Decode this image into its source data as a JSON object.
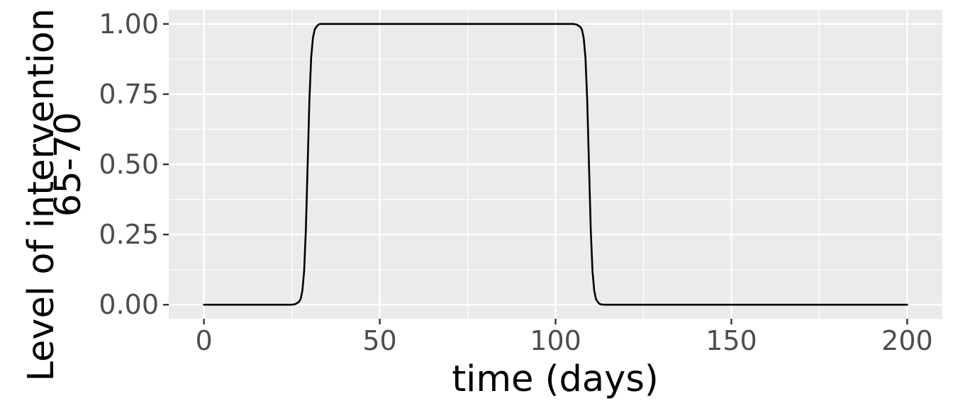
{
  "chart_data": {
    "type": "line",
    "xlabel": "time (days)",
    "ylabel_lines": [
      "Level of intervention for",
      "65-70"
    ],
    "xlim": [
      -10,
      210
    ],
    "ylim": [
      -0.05,
      1.05
    ],
    "x_ticks": [
      0,
      50,
      100,
      150,
      200
    ],
    "x_tick_labels": [
      "0",
      "50",
      "100",
      "150",
      "200"
    ],
    "y_ticks": [
      0,
      0.25,
      0.5,
      0.75,
      1.0
    ],
    "y_tick_labels": [
      "0.00",
      "0.25",
      "0.50",
      "0.75",
      "1.00"
    ],
    "grid": true,
    "series": [
      {
        "color": "#000000",
        "x": [
          0,
          10,
          20,
          25,
          26,
          27,
          27.5,
          28,
          28.5,
          29,
          29.5,
          30,
          30.5,
          31,
          31.5,
          32,
          32.5,
          33,
          34,
          35,
          50,
          75,
          100,
          105,
          106,
          107,
          107.5,
          108,
          108.5,
          109,
          109.5,
          110,
          110.5,
          111,
          111.5,
          112,
          112.5,
          113,
          114,
          115,
          130,
          150,
          175,
          200
        ],
        "y": [
          0,
          0,
          0,
          0,
          0.002,
          0.01,
          0.02,
          0.05,
          0.12,
          0.27,
          0.5,
          0.73,
          0.88,
          0.95,
          0.98,
          0.99,
          0.997,
          1,
          1,
          1,
          1,
          1,
          1,
          1,
          0.998,
          0.99,
          0.98,
          0.95,
          0.88,
          0.73,
          0.5,
          0.27,
          0.12,
          0.05,
          0.02,
          0.01,
          0.003,
          0.001,
          0,
          0,
          0,
          0,
          0,
          0
        ]
      }
    ]
  }
}
